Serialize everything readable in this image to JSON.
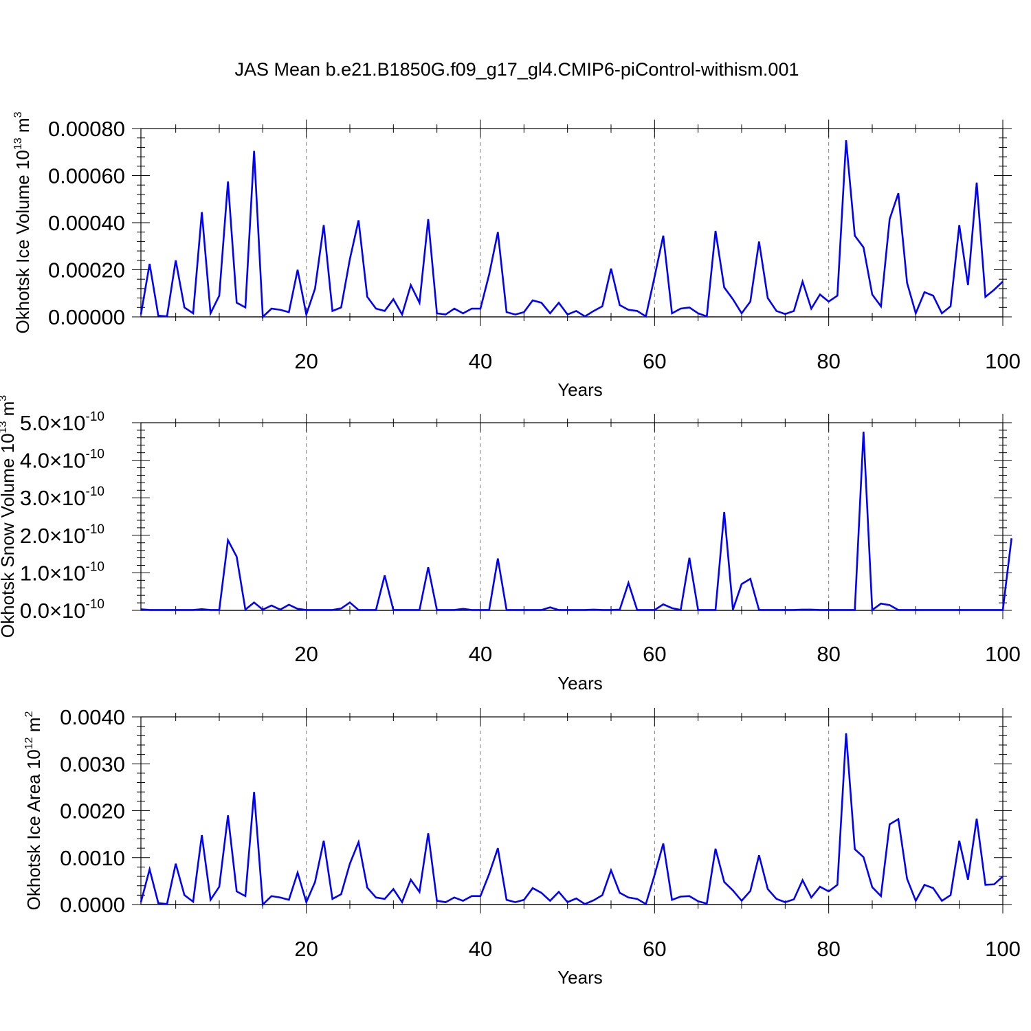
{
  "figure": {
    "title": "JAS Mean b.e21.B1850G.f09_g17_gl4.CMIP6-piControl-withism.001",
    "line_color": "#0000ff",
    "grid_color": "#808080"
  },
  "chart_data": [
    {
      "type": "line",
      "title": "",
      "xlabel": "Years",
      "ylabel_main": "Okhotsk Ice Volume 10",
      "ylabel_exp": "13",
      "ylabel_unit": "m",
      "ylabel_unit_exp": "3",
      "xlim": [
        0,
        100
      ],
      "ylim": [
        0,
        0.0008
      ],
      "xticks": [
        20,
        40,
        60,
        80,
        100
      ],
      "xtick_labels": [
        "20",
        "40",
        "60",
        "80",
        "100"
      ],
      "yticks": [
        0,
        0.0002,
        0.0004,
        0.0006,
        0.0008
      ],
      "ytick_labels": [
        "0.00000",
        "0.00020",
        "0.00040",
        "0.00060",
        "0.00080"
      ],
      "ytick_exp": "",
      "grid": "vertical dashed at x ticks",
      "x_start": 0,
      "series": [
        {
          "values": [
            1e-05,
            0.000225,
            5e-06,
            2e-06,
            0.00024,
            4e-05,
            1.5e-05,
            0.000445,
            1.5e-05,
            9e-05,
            0.000575,
            6e-05,
            4e-05,
            0.000705,
            0.0,
            3.5e-05,
            3e-05,
            2e-05,
            0.0002,
            1e-05,
            0.00012,
            0.00039,
            2.5e-05,
            4e-05,
            0.000245,
            0.00041,
            8.5e-05,
            3.5e-05,
            2.5e-05,
            7.5e-05,
            1e-05,
            0.000135,
            6e-05,
            0.000415,
            1.5e-05,
            1e-05,
            3.5e-05,
            1.5e-05,
            3.5e-05,
            3.5e-05,
            0.00018,
            0.00036,
            2e-05,
            1e-05,
            2e-05,
            7e-05,
            6e-05,
            1.5e-05,
            6e-05,
            1e-05,
            2.5e-05,
            2e-06,
            2.5e-05,
            4.5e-05,
            0.000205,
            5e-05,
            3e-05,
            2.5e-05,
            2e-06,
            0.00017,
            0.000345,
            1.5e-05,
            3.5e-05,
            4e-05,
            1.5e-05,
            2e-06,
            0.000365,
            0.000125,
            7.5e-05,
            1.5e-05,
            6.5e-05,
            0.00032,
            8e-05,
            2.5e-05,
            1.2e-05,
            2.5e-05,
            0.00015,
            3.5e-05,
            9.5e-05,
            6.5e-05,
            9e-05,
            0.00075,
            0.000345,
            0.000295,
            9.5e-05,
            4.5e-05,
            0.000415,
            0.000525,
            0.000145,
            1.5e-05,
            0.000105,
            9e-05,
            1.5e-05,
            4.5e-05,
            0.00039,
            0.000135,
            0.00057,
            8.5e-05,
            0.000115,
            0.00015
          ]
        }
      ]
    },
    {
      "type": "line",
      "title": "",
      "xlabel": "Years",
      "ylabel_main": "Okhotsk Snow Volume 10",
      "ylabel_exp": "13",
      "ylabel_unit": "m",
      "ylabel_unit_exp": "3",
      "xlim": [
        0,
        100
      ],
      "ylim": [
        0,
        5e-10
      ],
      "xticks": [
        20,
        40,
        60,
        80,
        100
      ],
      "xtick_labels": [
        "20",
        "40",
        "60",
        "80",
        "100"
      ],
      "yticks": [
        0,
        1e-10,
        2e-10,
        3e-10,
        4e-10,
        5e-10
      ],
      "ytick_labels": [
        "0.0×10",
        "1.0×10",
        "2.0×10",
        "3.0×10",
        "4.0×10",
        "5.0×10"
      ],
      "ytick_exp": "-10",
      "grid": "vertical dashed at x ticks",
      "x_start": 0,
      "series": [
        {
          "values": [
            3e-12,
            1e-12,
            1e-12,
            1e-12,
            1e-12,
            1e-12,
            1e-12,
            3e-12,
            1e-12,
            1e-12,
            1.87e-10,
            1.43e-10,
            2e-12,
            2.1e-11,
            2e-12,
            1.3e-11,
            2e-12,
            1.5e-11,
            4e-12,
            1e-12,
            1e-12,
            1e-12,
            1e-12,
            5e-12,
            2.1e-11,
            1e-12,
            1e-12,
            1e-12,
            9.3e-11,
            1e-12,
            1e-12,
            1e-12,
            1e-12,
            1.15e-10,
            1e-12,
            1e-12,
            1e-12,
            4e-12,
            1e-12,
            1e-12,
            1e-12,
            1.38e-10,
            1e-12,
            1e-12,
            1e-12,
            1e-12,
            1e-12,
            8e-12,
            1e-12,
            1e-12,
            1e-12,
            1e-12,
            2e-12,
            1e-12,
            1e-12,
            2e-12,
            7.3e-11,
            1e-12,
            1e-12,
            1e-12,
            1.6e-11,
            6e-12,
            1e-12,
            1.4e-10,
            1e-12,
            1e-12,
            1e-12,
            2.62e-10,
            2e-12,
            7e-11,
            8.4e-11,
            1e-12,
            1e-12,
            1e-12,
            1e-12,
            1e-12,
            2e-12,
            2e-12,
            1e-12,
            1e-12,
            1e-12,
            1e-12,
            1e-12,
            4.76e-10,
            1e-12,
            1.8e-11,
            1.4e-11,
            1e-12,
            1e-12,
            1e-12,
            1e-12,
            1e-12,
            1e-12,
            1e-12,
            1e-12,
            1e-12,
            1e-12,
            1e-12,
            1e-12,
            1e-12,
            1.92e-10
          ]
        }
      ]
    },
    {
      "type": "line",
      "title": "",
      "xlabel": "Years",
      "ylabel_main": "Okhotsk Ice Area 10",
      "ylabel_exp": "12",
      "ylabel_unit": "m",
      "ylabel_unit_exp": "2",
      "xlim": [
        0,
        100
      ],
      "ylim": [
        0,
        0.004
      ],
      "xticks": [
        20,
        40,
        60,
        80,
        100
      ],
      "xtick_labels": [
        "20",
        "40",
        "60",
        "80",
        "100"
      ],
      "yticks": [
        0,
        0.001,
        0.002,
        0.003,
        0.004
      ],
      "ytick_labels": [
        "0.0000",
        "0.0010",
        "0.0020",
        "0.0030",
        "0.0040"
      ],
      "ytick_exp": "",
      "grid": "vertical dashed at x ticks",
      "x_start": 0,
      "series": [
        {
          "values": [
            5e-05,
            0.00075,
            3e-05,
            1e-05,
            0.00087,
            0.0002,
            6e-05,
            0.00148,
            0.0001,
            0.00038,
            0.0019,
            0.00028,
            0.00018,
            0.0024,
            0.0,
            0.00018,
            0.00015,
            0.0001,
            0.00068,
            5e-05,
            0.00048,
            0.00136,
            0.00012,
            0.00022,
            0.00087,
            0.00133,
            0.00036,
            0.00015,
            0.00012,
            0.00033,
            5e-05,
            0.00053,
            0.00027,
            0.00152,
            8e-05,
            5e-05,
            0.00015,
            8e-05,
            0.00018,
            0.00018,
            0.00065,
            0.0012,
            0.0001,
            5e-05,
            0.0001,
            0.00035,
            0.00025,
            8e-05,
            0.00027,
            5e-05,
            0.00013,
            1e-05,
            9e-05,
            0.0002,
            0.00073,
            0.00025,
            0.00015,
            0.00012,
            1e-05,
            0.00063,
            0.0013,
            0.0001,
            0.00017,
            0.00018,
            7e-05,
            2e-05,
            0.00119,
            0.00048,
            0.0003,
            8e-05,
            0.00029,
            0.00105,
            0.00033,
            0.00012,
            5e-05,
            0.00011,
            0.00052,
            0.00015,
            0.00038,
            0.00028,
            0.00042,
            0.00365,
            0.00118,
            0.00101,
            0.00037,
            0.00018,
            0.00171,
            0.00182,
            0.00055,
            8e-05,
            0.00042,
            0.00035,
            8e-05,
            0.0002,
            0.00136,
            0.00053,
            0.00183,
            0.00042,
            0.00043,
            0.0006
          ]
        }
      ]
    }
  ]
}
